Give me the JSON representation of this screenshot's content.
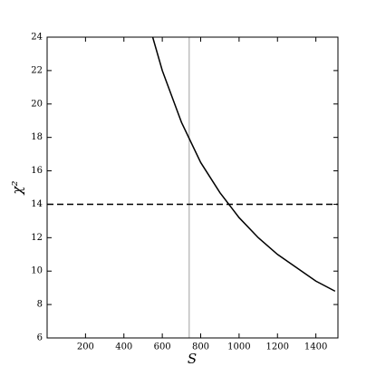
{
  "chart_data": {
    "type": "line",
    "x_label": "S",
    "y_label": "χ²",
    "series": [
      {
        "color": "#000000",
        "x": [
          550,
          600,
          700,
          800,
          900,
          1000,
          1100,
          1200,
          1300,
          1400,
          1500
        ],
        "values": [
          24,
          22,
          18.9,
          16.5,
          14.7,
          13.2,
          12,
          11,
          10.2,
          9.4,
          8.8
        ]
      }
    ],
    "vline": {
      "x": 740,
      "color": "#b0b0b0"
    },
    "hline": {
      "y": 14,
      "color": "#000000",
      "dashed": true
    },
    "xlim": [
      0,
      1515
    ],
    "ylim": [
      6,
      24
    ],
    "xticks": [
      200,
      400,
      600,
      800,
      1000,
      1200,
      1400
    ],
    "yticks": [
      6,
      8,
      10,
      12,
      14,
      16,
      18,
      20,
      22,
      24
    ]
  }
}
